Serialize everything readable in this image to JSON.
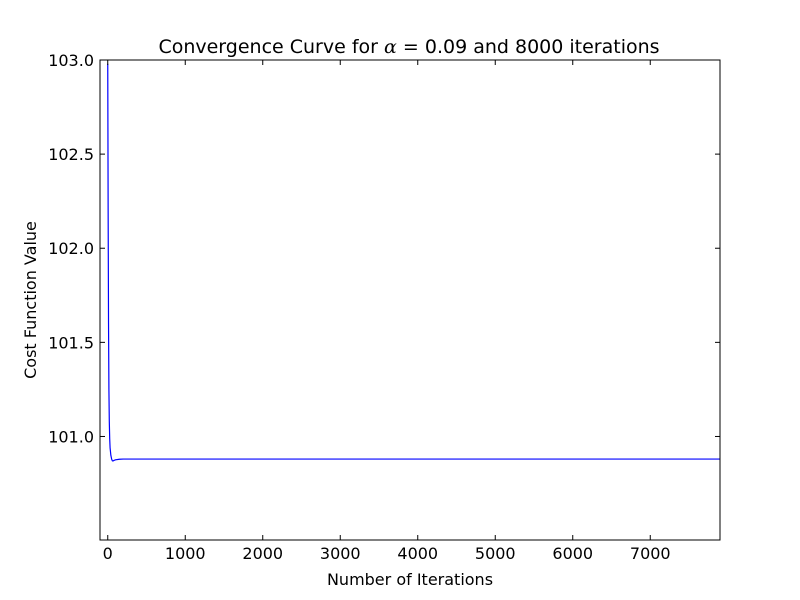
{
  "chart_data": {
    "type": "line",
    "title": {
      "prefix": "Convergence Curve for ",
      "symbol": "α",
      "equals": " = ",
      "suffix": "0.09 and 8000 iterations"
    },
    "xlabel": "Number of Iterations",
    "ylabel": "Cost Function Value",
    "xlim": [
      -100,
      7900
    ],
    "ylim": [
      100.45,
      103.0
    ],
    "xticks": [
      0,
      1000,
      2000,
      3000,
      4000,
      5000,
      6000,
      7000
    ],
    "xtick_labels": [
      "0",
      "1000",
      "2000",
      "3000",
      "4000",
      "5000",
      "6000",
      "7000"
    ],
    "yticks": [
      101.0,
      101.5,
      102.0,
      102.5,
      103.0
    ],
    "ytick_labels": [
      "101.0",
      "101.5",
      "102.0",
      "102.5",
      "103.0"
    ],
    "grid": false,
    "series": [
      {
        "color": "#0000ff",
        "x": [
          0,
          5,
          10,
          15,
          20,
          25,
          30,
          40,
          50,
          60,
          70,
          80,
          100,
          150,
          200,
          300,
          500,
          1000,
          2000,
          4000,
          6000,
          8000
        ],
        "y": [
          102.98,
          102.2,
          101.6,
          101.25,
          101.08,
          100.99,
          100.94,
          100.9,
          100.88,
          100.87,
          100.87,
          100.873,
          100.876,
          100.879,
          100.88,
          100.88,
          100.88,
          100.88,
          100.88,
          100.88,
          100.88,
          100.88
        ]
      }
    ]
  }
}
